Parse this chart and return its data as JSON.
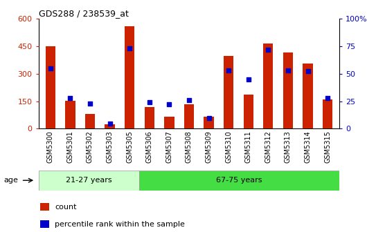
{
  "title": "GDS288 / 238539_at",
  "samples": [
    "GSM5300",
    "GSM5301",
    "GSM5302",
    "GSM5303",
    "GSM5305",
    "GSM5306",
    "GSM5307",
    "GSM5308",
    "GSM5309",
    "GSM5310",
    "GSM5311",
    "GSM5312",
    "GSM5313",
    "GSM5314",
    "GSM5315"
  ],
  "counts": [
    450,
    152,
    80,
    25,
    560,
    120,
    65,
    135,
    65,
    395,
    185,
    465,
    415,
    355,
    160
  ],
  "percentiles": [
    55,
    28,
    23,
    5,
    73,
    24,
    22,
    26,
    10,
    53,
    45,
    72,
    53,
    52,
    28
  ],
  "group1_label": "21-27 years",
  "group1_count": 5,
  "group2_label": "67-75 years",
  "group2_count": 10,
  "age_label": "age",
  "bar_color": "#cc2200",
  "dot_color": "#0000cc",
  "group1_bg": "#ccffcc",
  "group2_bg": "#44dd44",
  "ylim_left": [
    0,
    600
  ],
  "ylim_right": [
    0,
    100
  ],
  "yticks_left": [
    0,
    150,
    300,
    450,
    600
  ],
  "yticks_right": [
    0,
    25,
    50,
    75,
    100
  ],
  "grid_yticks": [
    150,
    300,
    450
  ],
  "bar_width": 0.5,
  "legend_count_label": "count",
  "legend_pct_label": "percentile rank within the sample"
}
